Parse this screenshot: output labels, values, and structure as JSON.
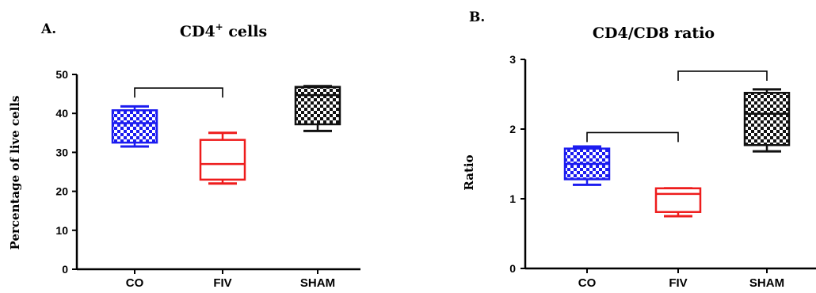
{
  "chart_data": [
    {
      "type": "box",
      "panel_label": "A.",
      "title": "CD4",
      "title_superscript": "+",
      "title_suffix": " cells",
      "ylabel": "Percentage of live cells",
      "ylim": [
        0,
        50
      ],
      "yticks": [
        "0",
        "10",
        "20",
        "30",
        "40",
        "50"
      ],
      "categories": [
        "CO",
        "FIV",
        "SHAM"
      ],
      "boxes": [
        {
          "category": "CO",
          "min": 31.5,
          "q1": 32.5,
          "median": 37.5,
          "q3": 40.8,
          "max": 41.8,
          "color": "#1c1cf0",
          "fill": "checkered"
        },
        {
          "category": "FIV",
          "min": 22.0,
          "q1": 23.0,
          "median": 27.0,
          "q3": 33.2,
          "max": 35.0,
          "color": "#ee1c1c",
          "fill": "none"
        },
        {
          "category": "SHAM",
          "min": 35.5,
          "q1": 37.2,
          "median": 44.7,
          "q3": 46.8,
          "max": 47.0,
          "color": "#111111",
          "fill": "checkered"
        }
      ],
      "brackets": [
        {
          "from": "CO",
          "to": "FIV",
          "level": 46.5
        }
      ]
    },
    {
      "type": "box",
      "panel_label": "B.",
      "title": "CD4/CD8 ratio",
      "title_superscript": "",
      "title_suffix": "",
      "ylabel": "Ratio",
      "ylim": [
        0,
        3
      ],
      "yticks": [
        "0",
        "1",
        "2",
        "3"
      ],
      "categories": [
        "CO",
        "FIV",
        "SHAM"
      ],
      "boxes": [
        {
          "category": "CO",
          "min": 1.2,
          "q1": 1.28,
          "median": 1.5,
          "q3": 1.72,
          "max": 1.75,
          "color": "#1c1cf0",
          "fill": "checkered"
        },
        {
          "category": "FIV",
          "min": 0.75,
          "q1": 0.81,
          "median": 1.07,
          "q3": 1.15,
          "max": 1.15,
          "color": "#ee1c1c",
          "fill": "none"
        },
        {
          "category": "SHAM",
          "min": 1.68,
          "q1": 1.77,
          "median": 2.22,
          "q3": 2.52,
          "max": 2.57,
          "color": "#111111",
          "fill": "checkered"
        }
      ],
      "brackets": [
        {
          "from": "CO",
          "to": "FIV",
          "level": 1.95
        },
        {
          "from": "FIV",
          "to": "SHAM",
          "level": 2.83
        }
      ]
    }
  ]
}
